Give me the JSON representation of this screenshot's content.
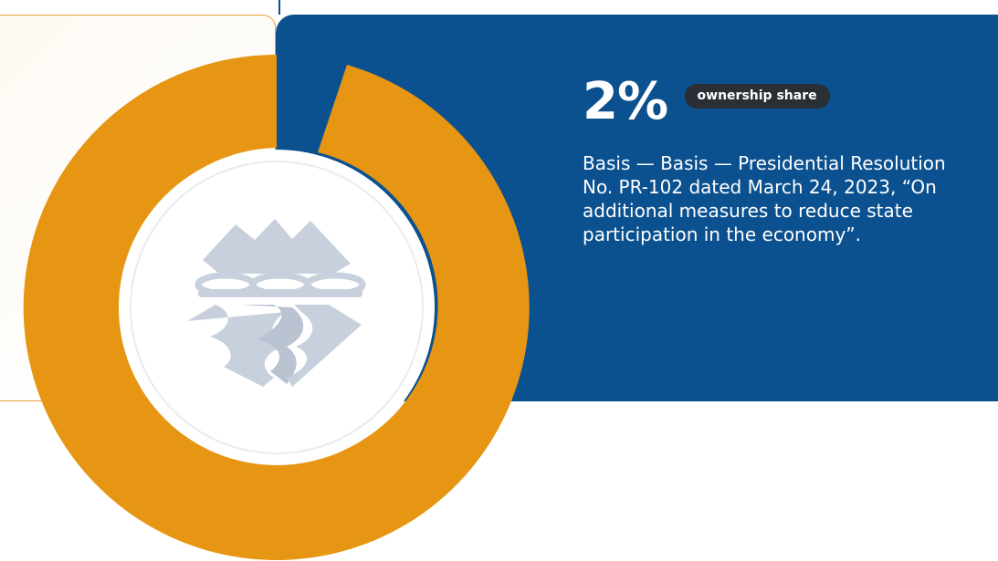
{
  "stat": {
    "value": "2%",
    "badge": "ownership share",
    "fraction": 0.02
  },
  "description": "Basis — Basis — Presidential Resolution No. PR-102 dated March 24, 2023, “On additional measures to reduce state participation in the economy”.",
  "colors": {
    "panel_blue": "#0c518f",
    "ring_orange": "#e69612",
    "badge_dark": "#2a2f36",
    "logo_gray": "#c7d0dc",
    "card_border": "#e6a23a"
  },
  "icons": {
    "logo": "mountain-water-logo-icon"
  }
}
